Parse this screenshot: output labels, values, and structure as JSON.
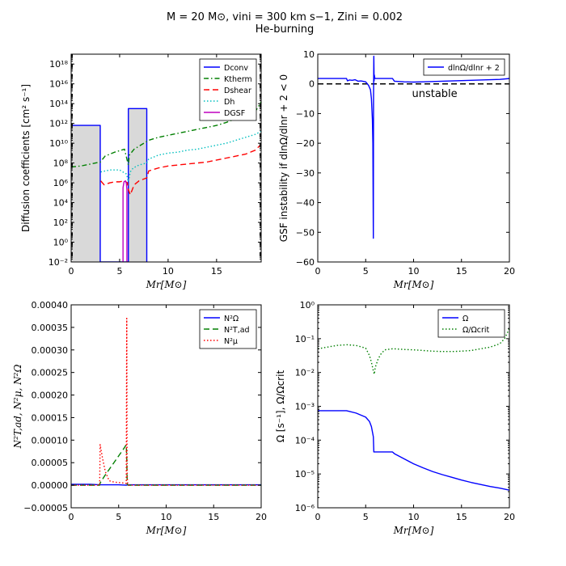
{
  "figure": {
    "title_line1": "M = 20 M⊙, vini = 300 km s−1, Zini = 0.002",
    "title_line2": "He-burning"
  },
  "colors": {
    "blue": "#0000ff",
    "green": "#007f00",
    "red": "#ff0000",
    "cyan": "#00bfbf",
    "magenta": "#bf00bf",
    "black": "#000000",
    "gray": "#d9d9d9"
  },
  "chart_data": [
    {
      "id": "p1",
      "type": "line",
      "yscale": "log",
      "xlabel": "Mr[M⊙]",
      "ylabel": "Diffusion coefficients [cm² s⁻¹]",
      "xlim": [
        0,
        19.6
      ],
      "ylim": [
        -2,
        19
      ],
      "xticks": [
        0,
        5,
        10,
        15
      ],
      "xtick_labels": [
        "0",
        "5",
        "10",
        "15"
      ],
      "yticks": [
        -2,
        0,
        2,
        4,
        6,
        8,
        10,
        12,
        14,
        16,
        18
      ],
      "ytick_labels": [
        "10⁻²",
        "10⁰",
        "10²",
        "10⁴",
        "10⁶",
        "10⁸",
        "10¹⁰",
        "10¹²",
        "10¹⁴",
        "10¹⁶",
        "10¹⁸"
      ],
      "legend_position": "top-right",
      "convective_zones": [
        {
          "x0": 0,
          "x1": 3.0,
          "logD": 11.8
        },
        {
          "x0": 5.9,
          "x1": 7.8,
          "logD": 13.5
        }
      ],
      "series": [
        {
          "name": "Dconv",
          "color": "blue",
          "style": "solid",
          "x": [
            0,
            3.0,
            3.0,
            3.02,
            3.02,
            5.9,
            5.9,
            7.8,
            7.8,
            7.82
          ],
          "y": [
            11.8,
            11.8,
            -2,
            -2,
            -2,
            -2,
            13.5,
            13.5,
            -2,
            -2
          ]
        },
        {
          "name": "Ktherm",
          "color": "green",
          "style": "dashdot",
          "x": [
            0,
            1,
            2,
            3,
            3.5,
            4.5,
            5.5,
            5.9,
            6,
            6.5,
            7,
            8,
            9,
            10,
            11,
            12,
            13,
            14,
            15,
            16,
            17,
            18,
            19,
            19.6
          ],
          "y": [
            7.6,
            7.7,
            7.9,
            8.1,
            8.7,
            9.1,
            9.4,
            7.8,
            8.8,
            9.4,
            9.7,
            10.3,
            10.6,
            10.8,
            11.0,
            11.2,
            11.4,
            11.6,
            11.8,
            12.1,
            12.5,
            12.9,
            13.2,
            14.2
          ]
        },
        {
          "name": "Dshear",
          "color": "red",
          "style": "dashed",
          "x": [
            3.05,
            3.4,
            4,
            4.5,
            5,
            5.5,
            5.8,
            5.9,
            6.1,
            6.5,
            7,
            7.8,
            8,
            9,
            10,
            11,
            12,
            13,
            14,
            15,
            16,
            17,
            18,
            19,
            19.6
          ],
          "y": [
            6.2,
            5.8,
            6.0,
            6.1,
            6.1,
            6.2,
            6.0,
            5.3,
            4.8,
            5.8,
            6.2,
            6.5,
            7.2,
            7.5,
            7.7,
            7.8,
            7.9,
            8.0,
            8.1,
            8.3,
            8.5,
            8.7,
            8.9,
            9.3,
            9.9
          ]
        },
        {
          "name": "Dh",
          "color": "cyan",
          "style": "dotted",
          "x": [
            3.05,
            4,
            5,
            5.5,
            5.7,
            5.9,
            6.1,
            6.4,
            7,
            7.8,
            8,
            9,
            10,
            11,
            12,
            13,
            14,
            15,
            16,
            17,
            18,
            19,
            19.6
          ],
          "y": [
            7.1,
            7.3,
            7.3,
            7.0,
            6.9,
            6.1,
            7.1,
            7.5,
            7.8,
            8.0,
            8.4,
            8.8,
            9.0,
            9.1,
            9.3,
            9.4,
            9.6,
            9.8,
            10.0,
            10.3,
            10.6,
            10.9,
            11.2
          ]
        },
        {
          "name": "DGSF",
          "color": "magenta",
          "style": "solid",
          "x": [
            5.35,
            5.35,
            5.45,
            5.6,
            5.7,
            5.75,
            5.75
          ],
          "y": [
            -2,
            5.5,
            6.1,
            6.2,
            5.9,
            5.3,
            -2
          ]
        }
      ]
    },
    {
      "id": "p2",
      "type": "line",
      "xlabel": "Mr[M⊙]",
      "ylabel": "GSF instability if dlnΩ/dlnr + 2 < 0",
      "xlim": [
        0,
        20
      ],
      "ylim": [
        -60,
        10
      ],
      "xticks": [
        0,
        5,
        10,
        15,
        20
      ],
      "xtick_labels": [
        "0",
        "5",
        "10",
        "15",
        "20"
      ],
      "yticks": [
        -60,
        -50,
        -40,
        -30,
        -20,
        -10,
        0,
        10
      ],
      "ytick_labels": [
        "−60",
        "−50",
        "−40",
        "−30",
        "−20",
        "−10",
        "0",
        "10"
      ],
      "legend_position": "top-right",
      "annotation": "unstable",
      "hline": {
        "y": 0,
        "color": "black",
        "style": "dashed"
      },
      "series": [
        {
          "name": "dlnΩ/dlnr + 2",
          "color": "blue",
          "style": "solid",
          "x": [
            0,
            3.0,
            3.1,
            3.3,
            3.6,
            3.9,
            4.2,
            4.5,
            5.0,
            5.3,
            5.5,
            5.6,
            5.7,
            5.75,
            5.8,
            5.82,
            5.85,
            5.88,
            5.9,
            5.95,
            6.0,
            6.2,
            6.5,
            7,
            7.6,
            7.8,
            8.0,
            9,
            10,
            11,
            12,
            13,
            14,
            15,
            16,
            17,
            18,
            19,
            20
          ],
          "y": [
            1.8,
            1.8,
            1.0,
            1.3,
            1.2,
            1.4,
            0.9,
            1.0,
            0.7,
            -0.5,
            -2,
            -5,
            -12,
            -20,
            -52,
            -5,
            9.3,
            1,
            3,
            2.0,
            1.8,
            1.8,
            1.8,
            1.8,
            1.8,
            1.8,
            0.9,
            0.7,
            0.6,
            0.7,
            0.8,
            0.9,
            1.0,
            1.1,
            1.2,
            1.3,
            1.4,
            1.5,
            1.8
          ]
        }
      ]
    },
    {
      "id": "p3",
      "type": "line",
      "xlabel": "Mr[M⊙]",
      "ylabel": "N²T,ad, N²μ, N²Ω",
      "xlim": [
        0,
        20
      ],
      "ylim": [
        -5e-05,
        0.0004
      ],
      "xticks": [
        0,
        5,
        10,
        15,
        20
      ],
      "xtick_labels": [
        "0",
        "5",
        "10",
        "15",
        "20"
      ],
      "yticks": [
        -5e-05,
        0,
        5e-05,
        0.0001,
        0.00015,
        0.0002,
        0.00025,
        0.0003,
        0.00035,
        0.0004
      ],
      "ytick_labels": [
        "−0.00005",
        "0.00000",
        "0.00005",
        "0.00010",
        "0.00015",
        "0.00020",
        "0.00025",
        "0.00030",
        "0.00035",
        "0.00040"
      ],
      "legend_position": "top-right",
      "series": [
        {
          "name": "N²Ω",
          "color": "blue",
          "style": "solid",
          "x": [
            0,
            2,
            3,
            4,
            5,
            5.8,
            6,
            8,
            10,
            15,
            20
          ],
          "y": [
            2e-06,
            2e-06,
            1e-06,
            1e-06,
            1e-06,
            0,
            1e-06,
            1e-06,
            1e-06,
            1e-06,
            1e-06
          ]
        },
        {
          "name": "N²T,ad",
          "color": "green",
          "style": "dashed",
          "x": [
            0,
            3.0,
            3.05,
            3.5,
            4,
            4.5,
            5,
            5.5,
            5.8,
            5.85,
            5.9,
            6.0,
            7,
            10,
            15,
            20
          ],
          "y": [
            0,
            0,
            5e-06,
            2e-05,
            3.5e-05,
            5e-05,
            6.5e-05,
            8e-05,
            9e-05,
            6e-05,
            3e-06,
            0,
            0,
            0,
            0,
            0
          ]
        },
        {
          "name": "N²μ",
          "color": "red",
          "style": "dotted",
          "x": [
            0,
            3.0,
            3.05,
            3.3,
            3.6,
            4.0,
            4.5,
            5.0,
            5.5,
            5.8,
            5.85,
            5.88,
            5.9,
            5.95,
            6.0,
            7,
            10,
            15,
            20
          ],
          "y": [
            0,
            0,
            9e-05,
            6e-05,
            3e-05,
            1e-05,
            7e-06,
            6e-06,
            5e-06,
            4e-06,
            0.00037,
            0.0001,
            2e-05,
            2e-06,
            0,
            0,
            0,
            0,
            0
          ]
        }
      ]
    },
    {
      "id": "p4",
      "type": "line",
      "yscale": "log",
      "xlabel": "Mr[M⊙]",
      "ylabel": "Ω [s⁻¹], Ω/Ωcrit",
      "xlim": [
        0,
        20
      ],
      "ylim": [
        -6,
        0
      ],
      "xticks": [
        0,
        5,
        10,
        15,
        20
      ],
      "xtick_labels": [
        "0",
        "5",
        "10",
        "15",
        "20"
      ],
      "yticks": [
        -6,
        -5,
        -4,
        -3,
        -2,
        -1,
        0
      ],
      "ytick_labels": [
        "10⁻⁶",
        "10⁻⁵",
        "10⁻⁴",
        "10⁻³",
        "10⁻²",
        "10⁻¹",
        "10⁰"
      ],
      "legend_position": "top-right",
      "series": [
        {
          "name": "Ω",
          "color": "blue",
          "style": "solid",
          "x": [
            0,
            3.0,
            4.0,
            5.0,
            5.4,
            5.6,
            5.8,
            5.85,
            6.0,
            7.0,
            7.8,
            8.0,
            9,
            10,
            11,
            12,
            13,
            14,
            15,
            16,
            17,
            18,
            19,
            20
          ],
          "y": [
            -3.13,
            -3.13,
            -3.2,
            -3.32,
            -3.45,
            -3.6,
            -3.9,
            -4.35,
            -4.35,
            -4.35,
            -4.35,
            -4.4,
            -4.55,
            -4.7,
            -4.82,
            -4.93,
            -5.02,
            -5.1,
            -5.18,
            -5.25,
            -5.31,
            -5.37,
            -5.42,
            -5.48
          ]
        },
        {
          "name": "Ω/Ωcrit",
          "color": "green",
          "style": "dotted",
          "x": [
            0,
            1,
            2,
            3,
            4,
            5,
            5.4,
            5.6,
            5.8,
            5.9,
            6.0,
            6.3,
            6.6,
            7,
            7.8,
            8,
            9,
            10,
            11,
            12,
            13,
            14,
            15,
            16,
            17,
            18,
            19,
            19.5,
            20
          ],
          "y": [
            -1.3,
            -1.25,
            -1.2,
            -1.18,
            -1.2,
            -1.28,
            -1.5,
            -1.7,
            -1.95,
            -2.05,
            -1.85,
            -1.6,
            -1.45,
            -1.33,
            -1.3,
            -1.3,
            -1.32,
            -1.33,
            -1.35,
            -1.37,
            -1.38,
            -1.38,
            -1.37,
            -1.35,
            -1.3,
            -1.25,
            -1.15,
            -1.0,
            -0.7
          ]
        }
      ]
    }
  ]
}
